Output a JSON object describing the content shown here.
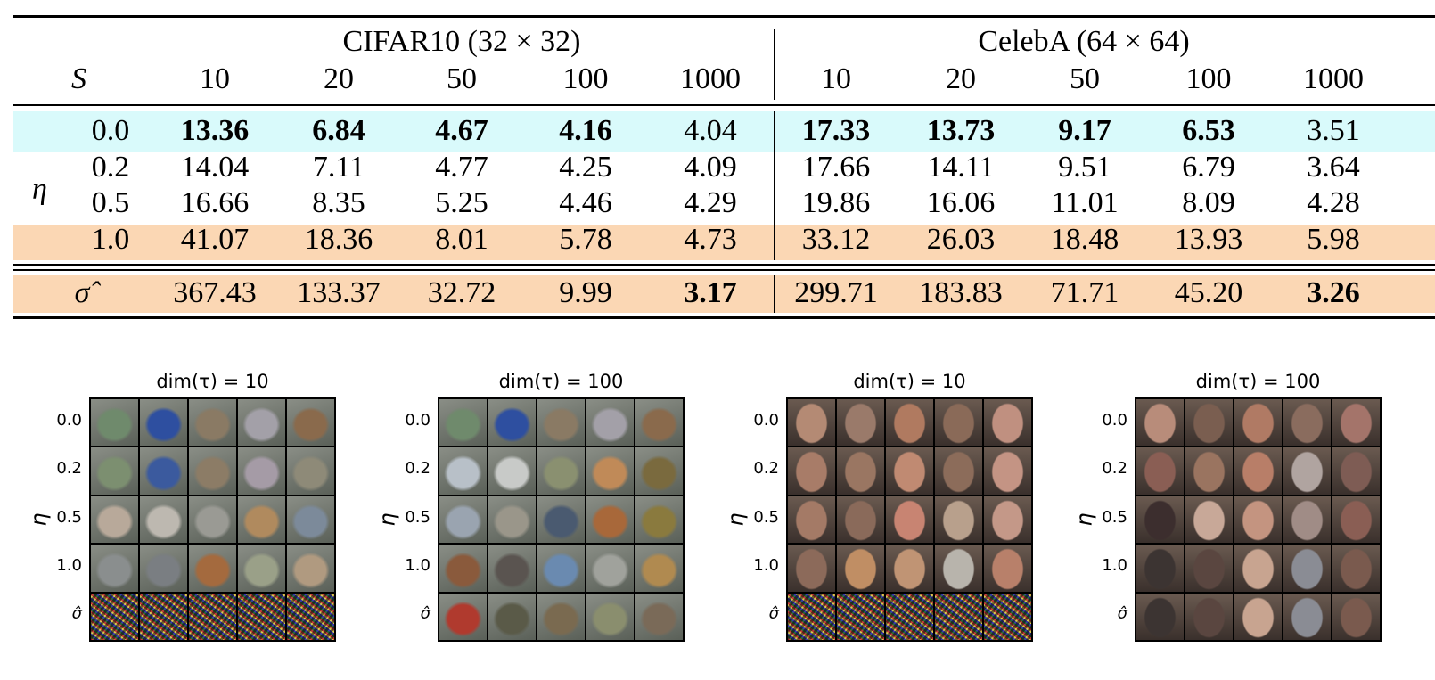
{
  "table": {
    "col_header_label": "S",
    "row_group_label": "η",
    "groups": [
      {
        "title": "CIFAR10 (32 × 32)",
        "steps": [
          "10",
          "20",
          "50",
          "100",
          "1000"
        ]
      },
      {
        "title": "CelebA (64 × 64)",
        "steps": [
          "10",
          "20",
          "50",
          "100",
          "1000"
        ]
      }
    ],
    "rows": [
      {
        "label": "0.0",
        "values": [
          "13.36",
          "6.84",
          "4.67",
          "4.16",
          "4.04",
          "17.33",
          "13.73",
          "9.17",
          "6.53",
          "3.51"
        ],
        "bold": [
          true,
          true,
          true,
          true,
          false,
          true,
          true,
          true,
          true,
          false
        ],
        "highlight": "#d9fafb"
      },
      {
        "label": "0.2",
        "values": [
          "14.04",
          "7.11",
          "4.77",
          "4.25",
          "4.09",
          "17.66",
          "14.11",
          "9.51",
          "6.79",
          "3.64"
        ],
        "bold": [
          false,
          false,
          false,
          false,
          false,
          false,
          false,
          false,
          false,
          false
        ],
        "highlight": ""
      },
      {
        "label": "0.5",
        "values": [
          "16.66",
          "8.35",
          "5.25",
          "4.46",
          "4.29",
          "19.86",
          "16.06",
          "11.01",
          "8.09",
          "4.28"
        ],
        "bold": [
          false,
          false,
          false,
          false,
          false,
          false,
          false,
          false,
          false,
          false
        ],
        "highlight": ""
      },
      {
        "label": "1.0",
        "values": [
          "41.07",
          "18.36",
          "8.01",
          "5.78",
          "4.73",
          "33.12",
          "26.03",
          "18.48",
          "13.93",
          "5.98"
        ],
        "bold": [
          false,
          false,
          false,
          false,
          false,
          false,
          false,
          false,
          false,
          false
        ],
        "highlight": "#fbd7b4"
      }
    ],
    "sigma_row": {
      "label": "σ̂",
      "values": [
        "367.43",
        "133.37",
        "32.72",
        "9.99",
        "3.17",
        "299.71",
        "183.83",
        "71.71",
        "45.20",
        "3.26"
      ],
      "bold": [
        false,
        false,
        false,
        false,
        true,
        false,
        false,
        false,
        false,
        true
      ],
      "highlight": "#fbd7b4"
    }
  },
  "panels": [
    {
      "title": "dim(τ) = 10",
      "dataset": "cifar"
    },
    {
      "title": "dim(τ) = 100",
      "dataset": "cifar"
    },
    {
      "title": "dim(τ) = 10",
      "dataset": "celeba"
    },
    {
      "title": "dim(τ) = 100",
      "dataset": "celeba"
    }
  ],
  "panel_row_labels": [
    "0.0",
    "0.2",
    "0.5",
    "1.0",
    "σ̂"
  ],
  "panel_axis_label": "η",
  "colors": {
    "cifar": [
      [
        "#6f8a6c",
        "#2e4fa0",
        "#8a7a64",
        "#a3a0a8",
        "#8a6a4c"
      ],
      [
        "#7c8f70",
        "#3b5a9e",
        "#8c7c66",
        "#a59ba6",
        "#8e8a78"
      ],
      [
        "#b8a99a",
        "#bdb8b0",
        "#9a9a94",
        "#b08a5e",
        "#7c8a9a"
      ],
      [
        "#8a8e8e",
        "#7a7e82",
        "#a46a3e",
        "#9aa088",
        "#b09a80"
      ],
      [
        "#7a6e7a",
        "#6a6a5a",
        "#7e6a70",
        "#7a7a76",
        "#706a64"
      ]
    ],
    "cifar100": [
      [
        "#6f8a6c",
        "#2e4fa0",
        "#8a7a64",
        "#a3a0a8",
        "#8a6a4c"
      ],
      [
        "#b8c0c8",
        "#c8cac8",
        "#8a9070",
        "#c08a58",
        "#7a6a3e"
      ],
      [
        "#9aa4b0",
        "#9a968a",
        "#4a5a70",
        "#a8683a",
        "#8a7a3e"
      ],
      [
        "#8a5a3c",
        "#5a5450",
        "#6a8ab0",
        "#a0a29c",
        "#b08a50"
      ],
      [
        "#b03a2e",
        "#5a5a48",
        "#7a6a50",
        "#8a8e6e",
        "#7a6a58"
      ]
    ],
    "celeba": [
      [
        "#b48a74",
        "#9a7a6a",
        "#b07a60",
        "#8a6a58",
        "#c09080"
      ],
      [
        "#a87c68",
        "#9a7662",
        "#c08a72",
        "#8c6c5a",
        "#c49484"
      ],
      [
        "#a47a66",
        "#8a6a5a",
        "#c88472",
        "#b8a08c",
        "#c49888"
      ],
      [
        "#8c6a5a",
        "#c08e64",
        "#c09474",
        "#b8b4ac",
        "#b8806a"
      ],
      [
        "#8e7262",
        "#a87a62",
        "#b08a70",
        "#9a8a80",
        "#b08c74"
      ]
    ],
    "celeba100": [
      [
        "#b88c7a",
        "#7a5e50",
        "#b07a64",
        "#8a6c5e",
        "#a4746a"
      ],
      [
        "#8a5e54",
        "#9a7460",
        "#b87e68",
        "#b0a4a0",
        "#7e5c54"
      ],
      [
        "#3c2e2e",
        "#c8a898",
        "#c49480",
        "#a08c86",
        "#8a5e54"
      ],
      [
        "#3c3432",
        "#5a4640",
        "#c8a490",
        "#8a8c94",
        "#7a5a4e"
      ],
      [
        "#3c3432",
        "#5a4640",
        "#c8a490",
        "#8a8c94",
        "#7a5a4e"
      ]
    ]
  }
}
